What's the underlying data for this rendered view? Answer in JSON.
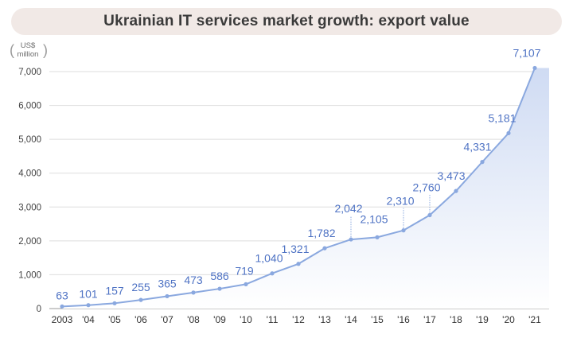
{
  "title": "Ukrainian IT services market growth: export value",
  "unit_line1": "US$",
  "unit_line2": "million",
  "chart_data": {
    "type": "area",
    "title": "Ukrainian IT services market growth: export value",
    "ylabel": "US$ million",
    "xlabel": "",
    "categories": [
      "2003",
      "'04",
      "'05",
      "'06",
      "'07",
      "'08",
      "'09",
      "'10",
      "'11",
      "'12",
      "'13",
      "'14",
      "'15",
      "'16",
      "'17",
      "'18",
      "'19",
      "'20",
      "'21"
    ],
    "values": [
      63,
      101,
      157,
      255,
      365,
      473,
      586,
      719,
      1040,
      1321,
      1782,
      2042,
      2105,
      2310,
      2760,
      3473,
      4331,
      5181,
      7107
    ],
    "value_labels": [
      "63",
      "101",
      "157",
      "255",
      "365",
      "473",
      "586",
      "719",
      "1,040",
      "1,321",
      "1,782",
      "2,042",
      "2,105",
      "2,310",
      "2,760",
      "3,473",
      "4,331",
      "5,181",
      "7,107"
    ],
    "yticks": [
      0,
      1000,
      2000,
      3000,
      4000,
      5000,
      6000,
      7000
    ],
    "ytick_labels": [
      "0",
      "1,000",
      "2,000",
      "3,000",
      "4,000",
      "5,000",
      "6,000",
      "7,000"
    ],
    "ylim": [
      0,
      7000
    ],
    "grid": true,
    "line_color": "#8aa8df",
    "label_color": "#4f73c4"
  }
}
